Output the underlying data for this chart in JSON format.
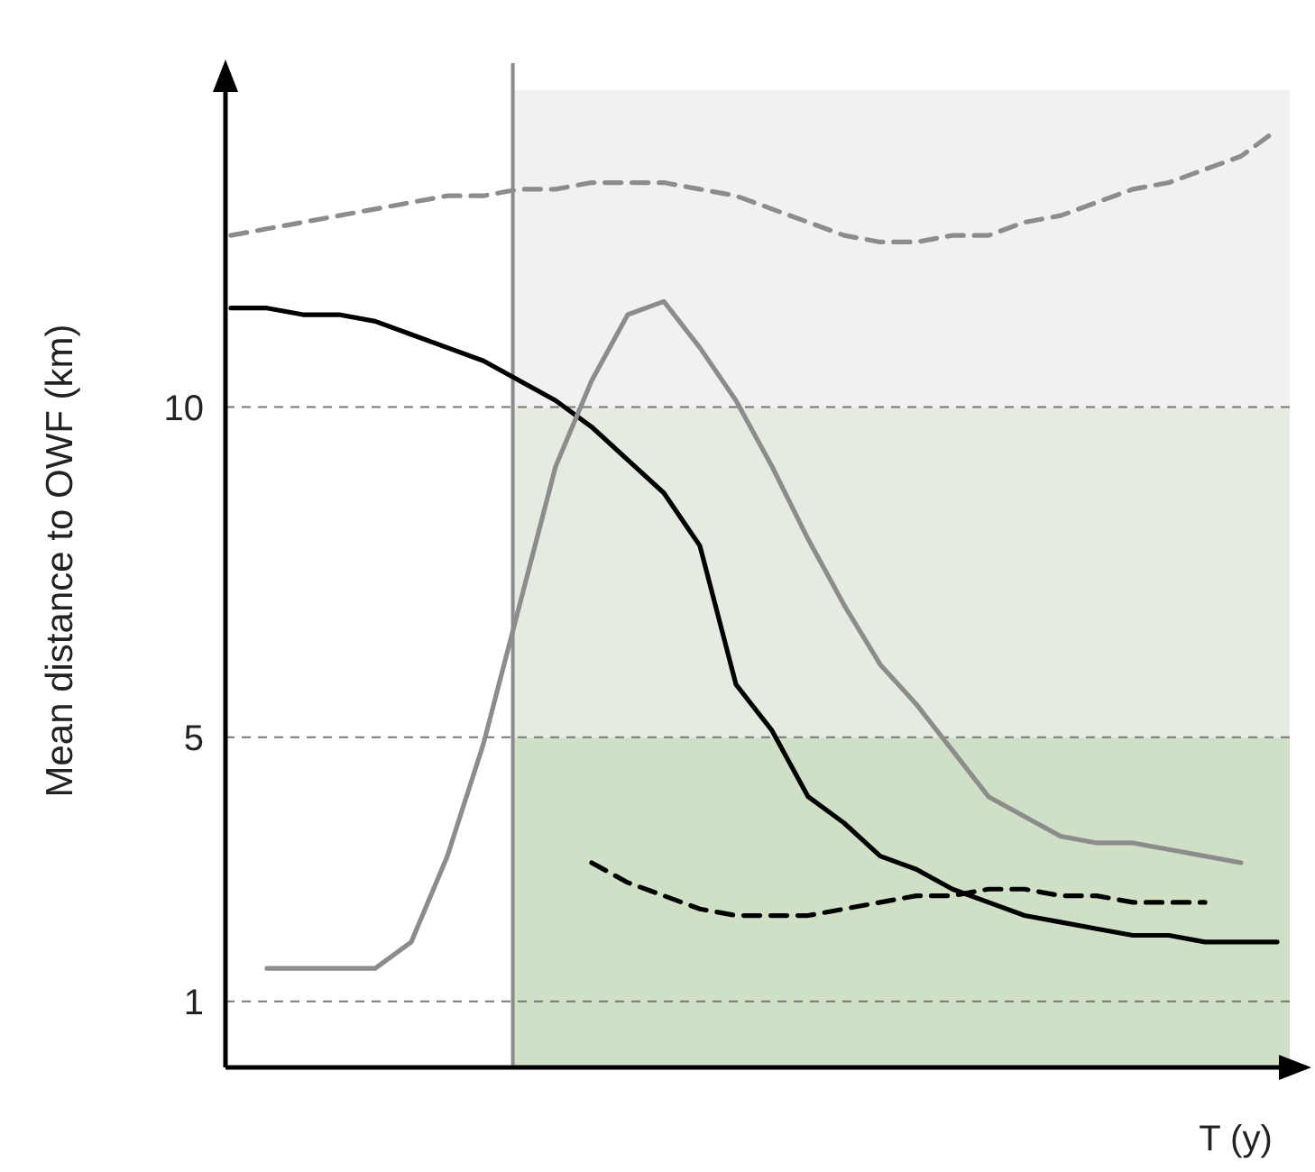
{
  "chart_data": {
    "type": "line",
    "xlabel": "T (y)",
    "ylabel": "Mean distance to OWF (km)",
    "ylim": [
      0,
      14.8
    ],
    "yticks": [
      1,
      5,
      10
    ],
    "tick_labels": "y",
    "grid": "y",
    "marker": "none",
    "categories": [
      null,
      null,
      null,
      null,
      null,
      null,
      null,
      null,
      null,
      null,
      null,
      null,
      null,
      null,
      null,
      null,
      null,
      null,
      null,
      null,
      null,
      null,
      null,
      null,
      null,
      null,
      null,
      null,
      null,
      null
    ],
    "bands": [
      {
        "axis": "y",
        "from": 0,
        "to": 5,
        "color": "#cfe0c6"
      },
      {
        "axis": "y",
        "from": 5,
        "to": 10,
        "color": "#e6ebe2"
      },
      {
        "axis": "y",
        "from": 10,
        "to": 14.8,
        "color": "#f1f1f1"
      }
    ],
    "series": [
      {
        "color": "#8c8c8c",
        "line_style": "dashed",
        "values": [
          12.6,
          12.7,
          12.8,
          12.9,
          13.0,
          13.1,
          13.2,
          13.2,
          13.3,
          13.3,
          13.4,
          13.4,
          13.4,
          13.3,
          13.2,
          13.0,
          12.8,
          12.6,
          12.5,
          12.5,
          12.6,
          12.6,
          12.8,
          12.9,
          13.1,
          13.3,
          13.4,
          13.6,
          13.8,
          14.2
        ]
      },
      {
        "color": "#000000",
        "line_style": "solid",
        "values": [
          11.5,
          11.5,
          11.4,
          11.4,
          11.3,
          11.1,
          10.9,
          10.7,
          10.4,
          10.1,
          9.7,
          9.2,
          8.7,
          7.9,
          5.8,
          5.1,
          4.1,
          3.7,
          3.2,
          3.0,
          2.7,
          2.5,
          2.3,
          2.2,
          2.1,
          2.0,
          2.0,
          1.9,
          1.9,
          1.9
        ]
      },
      {
        "color": "#8c8c8c",
        "line_style": "solid",
        "values": [
          null,
          1.5,
          1.5,
          1.5,
          1.5,
          1.9,
          3.2,
          4.9,
          7.0,
          9.1,
          10.4,
          11.4,
          11.6,
          10.9,
          10.1,
          9.1,
          8.0,
          7.0,
          6.1,
          5.5,
          4.8,
          4.1,
          3.8,
          3.5,
          3.4,
          3.4,
          3.3,
          3.2,
          3.1,
          null
        ]
      },
      {
        "color": "#000000",
        "line_style": "dashed",
        "values": [
          null,
          null,
          null,
          null,
          null,
          null,
          null,
          null,
          null,
          null,
          3.1,
          2.8,
          2.6,
          2.4,
          2.3,
          2.3,
          2.3,
          2.4,
          2.5,
          2.6,
          2.6,
          2.7,
          2.7,
          2.6,
          2.6,
          2.5,
          2.5,
          2.5,
          null,
          null
        ]
      }
    ]
  }
}
